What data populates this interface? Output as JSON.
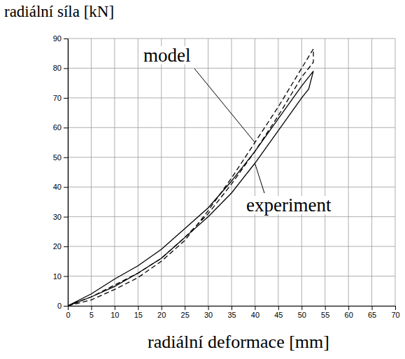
{
  "chart_data": {
    "type": "line",
    "x_label": "radiální deformace [mm]",
    "y_label": "radiální síla [kN]",
    "xlim": [
      0,
      70
    ],
    "ylim": [
      0,
      90
    ],
    "xticks": [
      0,
      5,
      10,
      15,
      20,
      25,
      30,
      35,
      40,
      45,
      50,
      55,
      60,
      65,
      70
    ],
    "yticks": [
      0,
      10,
      20,
      30,
      40,
      50,
      60,
      70,
      80,
      90
    ],
    "grid": true,
    "series": [
      {
        "name": "model",
        "color": "#000000",
        "line_style": "dashed",
        "x": [
          0,
          5,
          10,
          15,
          20,
          25,
          30,
          35,
          40,
          45,
          50,
          52.5,
          52.5,
          50,
          45,
          40,
          35,
          30,
          25,
          20,
          15,
          10,
          5,
          0
        ],
        "values": [
          0,
          2,
          5.5,
          9.5,
          15,
          22,
          32,
          43,
          55,
          67,
          80,
          86.5,
          82,
          77,
          64,
          52,
          41,
          31,
          23,
          16,
          11,
          7,
          3,
          0
        ]
      },
      {
        "name": "experiment",
        "color": "#000000",
        "line_style": "solid",
        "x": [
          0,
          5,
          10,
          15,
          20,
          25,
          30,
          35,
          40,
          45,
          50,
          52.5,
          51.5,
          50,
          45,
          40,
          35,
          30,
          25,
          20,
          15,
          10,
          5,
          0
        ],
        "values": [
          0,
          4,
          9,
          13.5,
          19,
          26,
          33,
          42,
          52,
          63,
          74,
          79,
          73,
          70,
          59,
          48,
          38,
          30,
          23,
          16,
          11,
          6.5,
          3,
          0
        ]
      }
    ]
  }
}
